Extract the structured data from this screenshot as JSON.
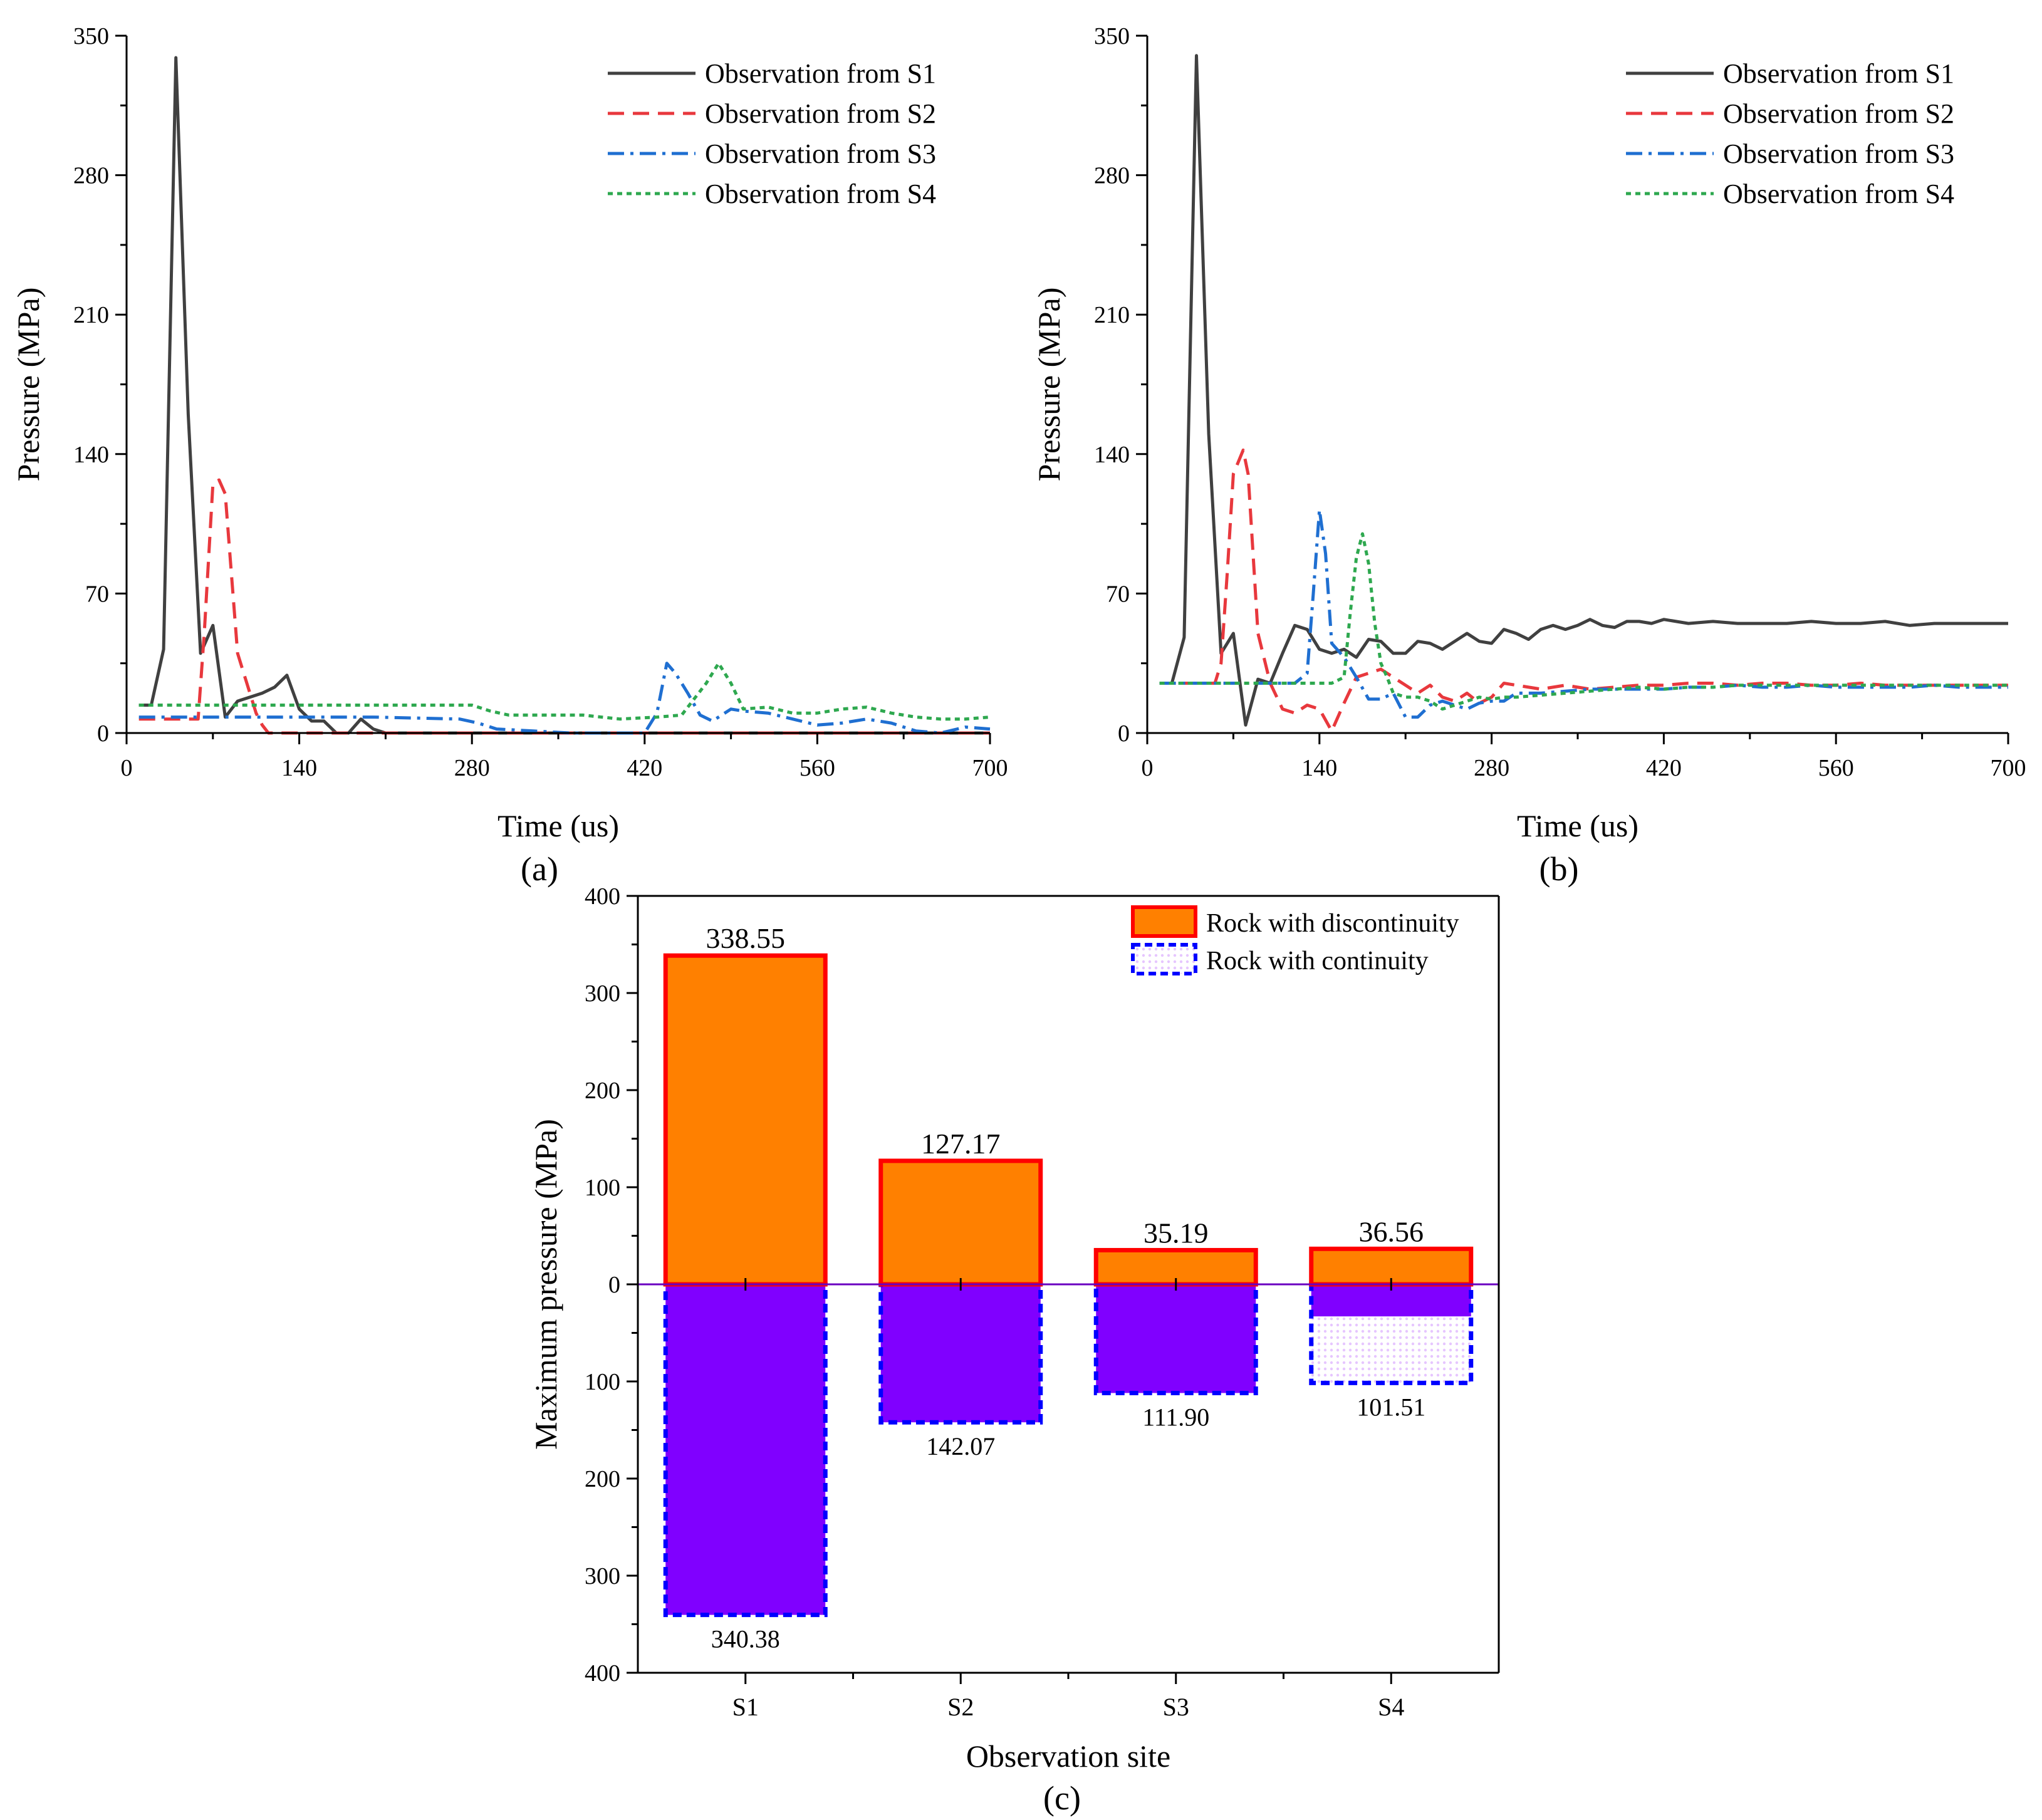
{
  "colors": {
    "s1": "#404040",
    "s2": "#e8383d",
    "s3": "#1f6fd1",
    "s4": "#2ea84f",
    "disc_fill": "#ff8000",
    "disc_stroke": "#ff0000",
    "cont_fill": "#8000ff",
    "cont_stroke": "#0000ff",
    "cont_pattern": "#e6c6ff",
    "zero_line": "#6a00c0"
  },
  "chart_data": [
    {
      "id": "a",
      "type": "line",
      "panel_label": "(a)",
      "xlabel": "Time (us)",
      "ylabel": "Pressure (MPa)",
      "xlim": [
        0,
        700
      ],
      "ylim": [
        0,
        350
      ],
      "xticks": [
        0,
        140,
        280,
        420,
        560,
        700
      ],
      "yticks": [
        0,
        70,
        140,
        210,
        280,
        350
      ],
      "legend_position": "top-right",
      "series": [
        {
          "name": "Observation from S1",
          "style": "solid",
          "color_key": "s1",
          "x": [
            10,
            20,
            30,
            40,
            50,
            60,
            70,
            80,
            90,
            100,
            110,
            120,
            130,
            140,
            150,
            160,
            170,
            180,
            190,
            200,
            210,
            300,
            400,
            500,
            600,
            700
          ],
          "y": [
            14,
            14,
            42,
            339,
            160,
            40,
            54,
            8,
            16,
            18,
            20,
            23,
            29,
            12,
            6,
            6,
            0,
            0,
            7,
            2,
            0,
            0,
            0,
            0,
            0,
            0
          ]
        },
        {
          "name": "Observation from S2",
          "style": "dashed",
          "color_key": "s2",
          "x": [
            10,
            50,
            58,
            63,
            70,
            75,
            80,
            85,
            90,
            95,
            100,
            105,
            110,
            115,
            120,
            200,
            300,
            400,
            500,
            600,
            700
          ],
          "y": [
            7,
            7,
            7,
            50,
            125,
            127,
            120,
            80,
            40,
            30,
            20,
            10,
            4,
            0,
            0,
            0,
            0,
            0,
            0,
            0,
            0
          ]
        },
        {
          "name": "Observation from S3",
          "style": "dashdot",
          "color_key": "s3",
          "x": [
            10,
            100,
            200,
            270,
            285,
            300,
            330,
            360,
            420,
            430,
            438,
            445,
            455,
            465,
            475,
            490,
            500,
            520,
            540,
            560,
            580,
            600,
            620,
            640,
            660,
            680,
            700
          ],
          "y": [
            8,
            8,
            8,
            7,
            5,
            2,
            1,
            0,
            0,
            10,
            35,
            30,
            20,
            9,
            6,
            12,
            11,
            10,
            7,
            4,
            5,
            7,
            5,
            1,
            0,
            3,
            2
          ]
        },
        {
          "name": "Observation from S4",
          "style": "dotted",
          "color_key": "s4",
          "x": [
            10,
            100,
            200,
            280,
            295,
            310,
            330,
            350,
            370,
            400,
            430,
            450,
            470,
            480,
            490,
            500,
            520,
            540,
            560,
            580,
            600,
            620,
            640,
            660,
            680,
            700
          ],
          "y": [
            14,
            14,
            14,
            14,
            11,
            9,
            9,
            9,
            9,
            7,
            8,
            9,
            25,
            35,
            25,
            12,
            13,
            10,
            10,
            12,
            13,
            10,
            8,
            7,
            7,
            8
          ]
        }
      ]
    },
    {
      "id": "b",
      "type": "line",
      "panel_label": "(b)",
      "xlabel": "Time (us)",
      "ylabel": "Pressure (MPa)",
      "xlim": [
        0,
        700
      ],
      "ylim": [
        0,
        350
      ],
      "xticks": [
        0,
        140,
        280,
        420,
        560,
        700
      ],
      "yticks": [
        0,
        70,
        140,
        210,
        280,
        350
      ],
      "legend_position": "top-right",
      "series": [
        {
          "name": "Observation from S1",
          "style": "solid",
          "color_key": "s1",
          "x": [
            10,
            20,
            30,
            40,
            50,
            60,
            70,
            80,
            90,
            100,
            110,
            120,
            130,
            140,
            150,
            160,
            170,
            180,
            190,
            200,
            210,
            220,
            230,
            240,
            250,
            260,
            270,
            280,
            290,
            300,
            310,
            320,
            330,
            340,
            350,
            360,
            370,
            380,
            390,
            400,
            410,
            420,
            440,
            460,
            480,
            500,
            520,
            540,
            560,
            580,
            600,
            620,
            640,
            660,
            680,
            700
          ],
          "y": [
            25,
            25,
            48,
            340,
            150,
            40,
            50,
            4,
            27,
            25,
            40,
            54,
            52,
            42,
            40,
            42,
            38,
            47,
            46,
            40,
            40,
            46,
            45,
            42,
            46,
            50,
            46,
            45,
            52,
            50,
            47,
            52,
            54,
            52,
            54,
            57,
            54,
            53,
            56,
            56,
            55,
            57,
            55,
            56,
            55,
            55,
            55,
            56,
            55,
            55,
            56,
            54,
            55,
            55,
            55,
            55
          ]
        },
        {
          "name": "Observation from S2",
          "style": "dashed",
          "color_key": "s2",
          "x": [
            10,
            55,
            60,
            65,
            70,
            78,
            82,
            90,
            100,
            110,
            120,
            130,
            140,
            150,
            160,
            170,
            180,
            190,
            200,
            210,
            220,
            230,
            240,
            250,
            260,
            270,
            280,
            290,
            300,
            320,
            340,
            360,
            380,
            400,
            420,
            440,
            460,
            480,
            500,
            520,
            540,
            560,
            580,
            600,
            620,
            640,
            660,
            680,
            700
          ],
          "y": [
            25,
            25,
            35,
            80,
            130,
            142,
            130,
            50,
            25,
            12,
            10,
            14,
            12,
            1,
            15,
            28,
            30,
            32,
            28,
            24,
            20,
            24,
            18,
            16,
            20,
            15,
            18,
            25,
            24,
            22,
            24,
            22,
            23,
            24,
            24,
            25,
            25,
            24,
            25,
            25,
            24,
            24,
            25,
            24,
            24,
            24,
            24,
            24,
            24
          ]
        },
        {
          "name": "Observation from S3",
          "style": "dashdot",
          "color_key": "s3",
          "x": [
            10,
            100,
            120,
            130,
            135,
            140,
            145,
            150,
            160,
            170,
            180,
            190,
            200,
            210,
            220,
            230,
            240,
            250,
            260,
            270,
            280,
            290,
            300,
            320,
            340,
            360,
            380,
            400,
            420,
            440,
            460,
            480,
            500,
            520,
            540,
            560,
            580,
            600,
            620,
            640,
            660,
            680,
            700
          ],
          "y": [
            25,
            25,
            25,
            30,
            70,
            112,
            90,
            45,
            38,
            28,
            17,
            17,
            20,
            8,
            8,
            14,
            16,
            14,
            12,
            15,
            16,
            16,
            20,
            20,
            21,
            22,
            22,
            22,
            22,
            23,
            23,
            24,
            23,
            23,
            24,
            23,
            23,
            23,
            23,
            24,
            23,
            23,
            23
          ]
        },
        {
          "name": "Observation from S4",
          "style": "dotted",
          "color_key": "s4",
          "x": [
            10,
            140,
            150,
            160,
            165,
            170,
            175,
            180,
            185,
            190,
            195,
            200,
            210,
            220,
            230,
            240,
            250,
            260,
            270,
            280,
            290,
            300,
            320,
            340,
            360,
            380,
            400,
            420,
            440,
            460,
            480,
            500,
            520,
            540,
            560,
            580,
            600,
            620,
            640,
            660,
            680,
            700
          ],
          "y": [
            25,
            25,
            25,
            28,
            60,
            88,
            100,
            85,
            55,
            35,
            28,
            20,
            18,
            18,
            16,
            12,
            14,
            16,
            18,
            17,
            18,
            18,
            19,
            20,
            21,
            22,
            23,
            22,
            23,
            23,
            24,
            24,
            24,
            24,
            24,
            24,
            24,
            24,
            24,
            24,
            24,
            24
          ]
        }
      ]
    },
    {
      "id": "c",
      "type": "bar",
      "panel_label": "(c)",
      "xlabel": "Observation site",
      "ylabel": "Maximum pressure (MPa)",
      "categories": [
        "S1",
        "S2",
        "S3",
        "S4"
      ],
      "ylim": [
        -400,
        400
      ],
      "yticks": [
        400,
        300,
        200,
        100,
        0,
        -100,
        -200,
        -300,
        -400
      ],
      "ytick_labels": [
        "400",
        "300",
        "200",
        "100",
        "0",
        "100",
        "200",
        "300",
        "400"
      ],
      "legend_position": "top-right",
      "series": [
        {
          "name": "Rock with discontinuity",
          "direction": "up",
          "values": [
            338.55,
            127.17,
            35.19,
            36.56
          ],
          "labels": [
            "338.55",
            "127.17",
            "35.19",
            "36.56"
          ]
        },
        {
          "name": "Rock with continuity",
          "direction": "down",
          "values": [
            340.38,
            142.07,
            111.9,
            101.51
          ],
          "labels": [
            "340.38",
            "142.07",
            "111.90",
            "101.51"
          ]
        }
      ]
    }
  ]
}
